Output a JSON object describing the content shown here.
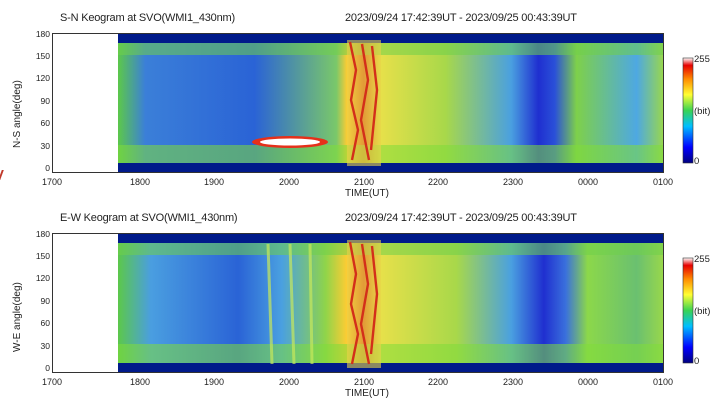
{
  "colors": {
    "background": "#ffffff",
    "frame": "#333333",
    "colorbar_stops": [
      "#000080",
      "#0000ff",
      "#00bfff",
      "#39d353",
      "#ffff33",
      "#ff8c00",
      "#e60000",
      "#ffffff"
    ]
  },
  "chart_data": [
    {
      "type": "heatmap",
      "title": "S-N Keogram at SVO(WMI1_430nm)",
      "time_range": "2023/09/24 17:42:39UT - 2023/09/25 00:43:39UT",
      "xlabel": "TIME(UT)",
      "ylabel": "N-S angle(deg)",
      "x_ticks": [
        "1700",
        "1800",
        "1900",
        "2000",
        "2100",
        "2200",
        "2300",
        "0000",
        "0100"
      ],
      "y_ticks": [
        "0",
        "30",
        "60",
        "90",
        "120",
        "150",
        "180"
      ],
      "ylim": [
        0,
        180
      ],
      "colorbar": {
        "min": "0",
        "max": "255",
        "unit": "(bit)"
      }
    },
    {
      "type": "heatmap",
      "title": "E-W Keogram at SVO(WMI1_430nm)",
      "time_range": "2023/09/24 17:42:39UT - 2023/09/25 00:43:39UT",
      "xlabel": "TIME(UT)",
      "ylabel": "W-E angle(deg)",
      "x_ticks": [
        "1700",
        "1800",
        "1900",
        "2000",
        "2100",
        "2200",
        "2300",
        "0000",
        "0100"
      ],
      "y_ticks": [
        "0",
        "30",
        "60",
        "90",
        "120",
        "150",
        "180"
      ],
      "ylim": [
        0,
        180
      ],
      "colorbar": {
        "min": "0",
        "max": "255",
        "unit": "(bit)"
      }
    }
  ]
}
